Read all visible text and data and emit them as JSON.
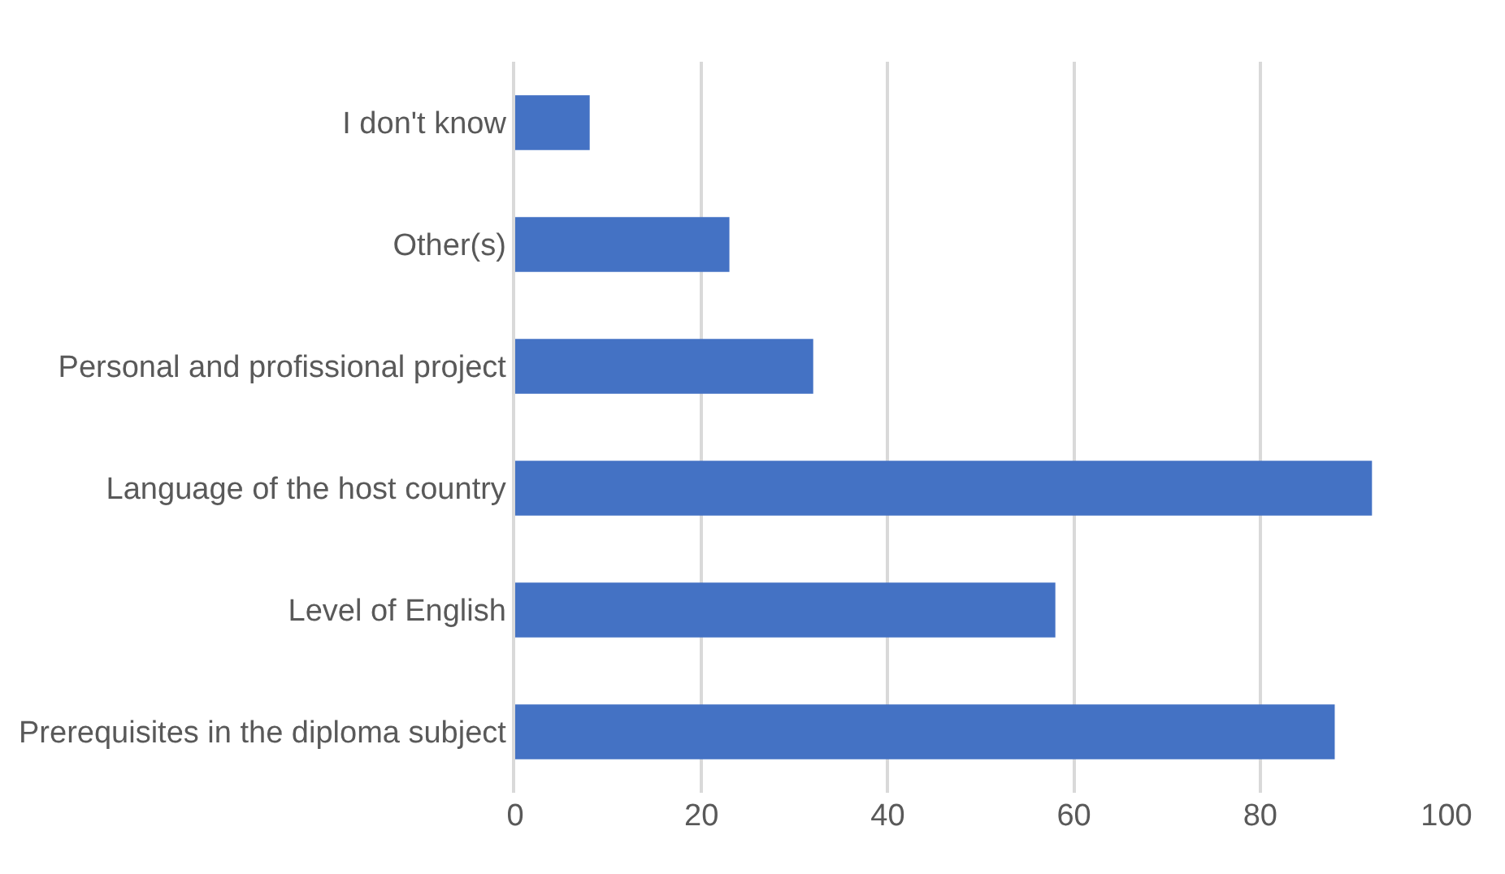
{
  "chart_data": {
    "type": "bar",
    "orientation": "horizontal",
    "categories": [
      "I don't know",
      "Other(s)",
      "Personal and profissional project",
      "Language of the host country",
      "Level of English",
      "Prerequisites in the diploma subject"
    ],
    "values": [
      8,
      23,
      32,
      92,
      58,
      88
    ],
    "color": "#4472c4",
    "xlim": [
      0,
      100
    ],
    "xticks": [
      0,
      20,
      40,
      60,
      80,
      100
    ],
    "grid": "x"
  }
}
